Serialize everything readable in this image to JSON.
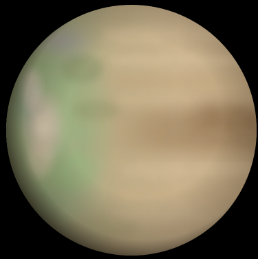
{
  "image": {
    "subject": "planet-sphere",
    "colors": {
      "background": "#000000",
      "limb_shadow": "#1c140c",
      "cloud_cream": "#d9c19b",
      "cloud_tan": "#b89b72",
      "cloud_band_brown": "#8e6a44",
      "terrain_green": "#8fae7a",
      "terrain_teal": "#6f9c8c",
      "terrain_pink": "#e8c8c0",
      "highlight_cream": "#f4e2c4",
      "terrain_violet": "#a79bb8"
    }
  }
}
